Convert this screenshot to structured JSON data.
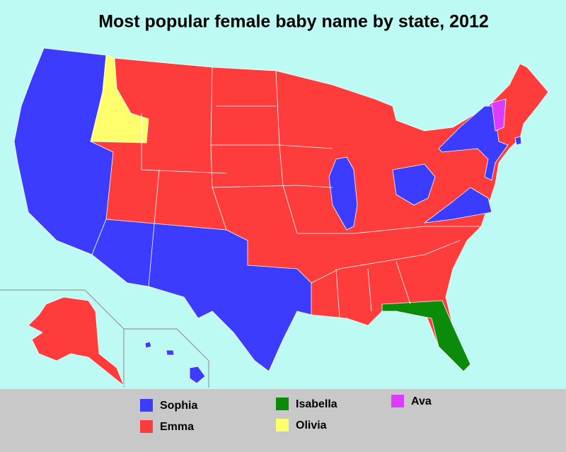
{
  "title": "Most popular female baby name by state, 2012",
  "legend": [
    {
      "name": "Sophia",
      "color": "#3c3cff"
    },
    {
      "name": "Emma",
      "color": "#ff3c3c"
    },
    {
      "name": "Isabella",
      "color": "#0a8c0a"
    },
    {
      "name": "Olivia",
      "color": "#ffff6e"
    },
    {
      "name": "Ava",
      "color": "#dc3cff"
    }
  ]
}
